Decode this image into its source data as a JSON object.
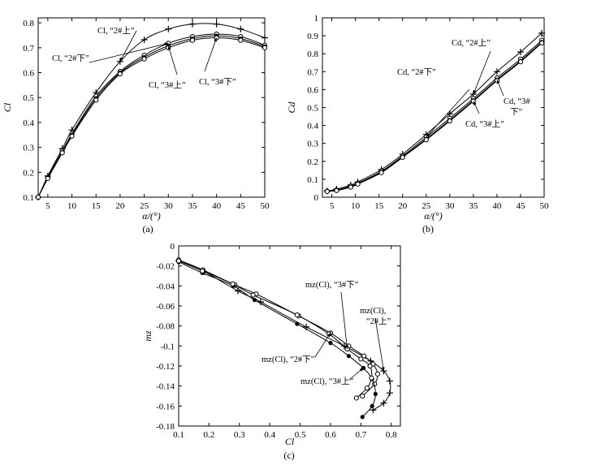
{
  "chart_data": [
    {
      "type": "line",
      "caption": "(a)",
      "xlabel": "α/(°)",
      "ylabel": "Cl",
      "xlim": [
        3,
        50
      ],
      "ylim": [
        0.1,
        0.82
      ],
      "xticks": [
        5,
        10,
        15,
        20,
        25,
        30,
        35,
        40,
        45,
        50
      ],
      "yticks": [
        0.1,
        0.2,
        0.3,
        0.4,
        0.5,
        0.6,
        0.7,
        0.8
      ],
      "x": [
        3,
        5,
        8,
        10,
        15,
        20,
        25,
        30,
        35,
        40,
        45,
        50
      ],
      "series": [
        {
          "marker": "plus",
          "values": [
            0.1,
            0.185,
            0.295,
            0.37,
            0.52,
            0.645,
            0.732,
            0.775,
            0.795,
            0.795,
            0.775,
            0.74
          ]
        },
        {
          "marker": "open-circle",
          "values": [
            0.1,
            0.18,
            0.285,
            0.355,
            0.505,
            0.605,
            0.67,
            0.718,
            0.745,
            0.755,
            0.745,
            0.71
          ]
        },
        {
          "marker": "filled-circle",
          "values": [
            0.1,
            0.178,
            0.28,
            0.35,
            0.497,
            0.6,
            0.662,
            0.708,
            0.737,
            0.748,
            0.737,
            0.705
          ]
        },
        {
          "marker": "open-circle",
          "values": [
            0.1,
            0.175,
            0.278,
            0.345,
            0.49,
            0.595,
            0.655,
            0.7,
            0.73,
            0.74,
            0.73,
            0.7
          ]
        }
      ],
      "annotations": [
        {
          "text": "Cl, “2#上”",
          "series": 0
        },
        {
          "text": "Cl, “2#下”",
          "series": 1
        },
        {
          "text": "Cl, “3#上”",
          "series": 2
        },
        {
          "text": "Cl, “3#下”",
          "series": 3
        }
      ]
    },
    {
      "type": "line",
      "caption": "(b)",
      "xlabel": "α/(°)",
      "ylabel": "Cd",
      "xlim": [
        3,
        50
      ],
      "ylim": [
        0,
        1.0
      ],
      "xticks": [
        5,
        10,
        15,
        20,
        25,
        30,
        35,
        40,
        45,
        50
      ],
      "yticks": [
        0,
        0.1,
        0.2,
        0.3,
        0.4,
        0.5,
        0.6,
        0.7,
        0.8,
        0.9,
        1
      ],
      "x": [
        4,
        6,
        9,
        10.5,
        15.5,
        20,
        25,
        30,
        35,
        40,
        45,
        49.5
      ],
      "series": [
        {
          "marker": "plus",
          "values": [
            0.035,
            0.045,
            0.068,
            0.085,
            0.155,
            0.24,
            0.35,
            0.465,
            0.575,
            0.7,
            0.81,
            0.915
          ]
        },
        {
          "marker": "open-circle",
          "values": [
            0.033,
            0.04,
            0.062,
            0.078,
            0.145,
            0.23,
            0.335,
            0.44,
            0.55,
            0.665,
            0.77,
            0.875
          ]
        },
        {
          "marker": "filled-circle",
          "values": [
            0.032,
            0.038,
            0.058,
            0.075,
            0.14,
            0.225,
            0.325,
            0.43,
            0.54,
            0.655,
            0.76,
            0.865
          ]
        },
        {
          "marker": "open-circle",
          "values": [
            0.032,
            0.037,
            0.056,
            0.073,
            0.137,
            0.222,
            0.32,
            0.425,
            0.535,
            0.65,
            0.755,
            0.86
          ]
        }
      ],
      "annotations": [
        {
          "text": "Cd, “2#上”",
          "series": 0
        },
        {
          "text": "Cd, “2#下”",
          "series": 1
        },
        {
          "text": "Cd, “3#",
          "text2": "下”",
          "series": 2
        },
        {
          "text": "Cd, “3#上”",
          "series": 3
        }
      ]
    },
    {
      "type": "line",
      "caption": "(c)",
      "xlabel": "Cl",
      "ylabel": "mz",
      "xlim": [
        0.1,
        0.83
      ],
      "ylim": [
        -0.18,
        0
      ],
      "xticks": [
        0.1,
        0.2,
        0.3,
        0.4,
        0.5,
        0.6,
        0.7,
        0.8
      ],
      "yticks": [
        0,
        -0.02,
        -0.04,
        -0.06,
        -0.08,
        -0.1,
        -0.12,
        -0.14,
        -0.16,
        -0.18
      ],
      "series": [
        {
          "marker": "plus",
          "x": [
            0.1,
            0.185,
            0.295,
            0.37,
            0.52,
            0.645,
            0.732,
            0.775,
            0.795,
            0.795,
            0.775,
            0.74
          ],
          "values": [
            -0.015,
            -0.026,
            -0.045,
            -0.056,
            -0.081,
            -0.1,
            -0.115,
            -0.125,
            -0.135,
            -0.147,
            -0.157,
            -0.164
          ]
        },
        {
          "marker": "open-circle",
          "x": [
            0.1,
            0.18,
            0.285,
            0.355,
            0.495,
            0.6,
            0.66,
            0.71,
            0.74,
            0.755,
            0.745,
            0.705
          ],
          "values": [
            -0.014,
            -0.024,
            -0.039,
            -0.048,
            -0.07,
            -0.087,
            -0.1,
            -0.11,
            -0.118,
            -0.128,
            -0.138,
            -0.15
          ]
        },
        {
          "marker": "filled-circle",
          "x": [
            0.1,
            0.178,
            0.28,
            0.35,
            0.49,
            0.6,
            0.66,
            0.708,
            0.737,
            0.748,
            0.737,
            0.705
          ],
          "values": [
            -0.016,
            -0.027,
            -0.04,
            -0.054,
            -0.078,
            -0.097,
            -0.11,
            -0.122,
            -0.133,
            -0.148,
            -0.16,
            -0.171
          ]
        },
        {
          "marker": "open-circle",
          "x": [
            0.1,
            0.178,
            0.278,
            0.345,
            0.49,
            0.595,
            0.655,
            0.7,
            0.73,
            0.735,
            0.72,
            0.685
          ],
          "values": [
            -0.015,
            -0.025,
            -0.038,
            -0.049,
            -0.069,
            -0.088,
            -0.103,
            -0.113,
            -0.12,
            -0.132,
            -0.142,
            -0.152
          ]
        }
      ],
      "annotations": [
        {
          "text": "mz(Cl), “3#下”",
          "series": 3
        },
        {
          "text": "mz(Cl),",
          "text2": "“2#上”",
          "series": 0
        },
        {
          "text": "mz(Cl), “2#下”",
          "series": 1
        },
        {
          "text": "mz(Cl), “3#上”",
          "series": 2
        }
      ]
    }
  ]
}
